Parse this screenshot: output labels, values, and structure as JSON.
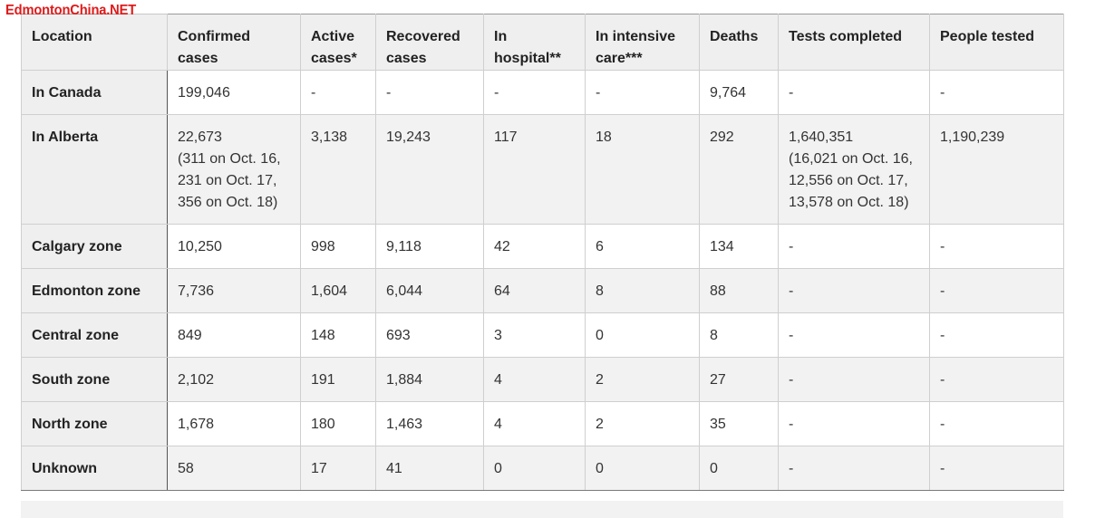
{
  "watermark": "EdmontonChina.NET",
  "table": {
    "headers": [
      "Location",
      "Confirmed cases",
      "Active cases*",
      "Recovered cases",
      "In hospital**",
      "In intensive care***",
      "Deaths",
      "Tests completed",
      "People tested"
    ],
    "rows": [
      {
        "location": "In Canada",
        "confirmed": "199,046",
        "active": "-",
        "recovered": "-",
        "hospital": "-",
        "icu": "-",
        "deaths": "9,764",
        "tests": "-",
        "people": "-"
      },
      {
        "location": "In Alberta",
        "confirmed": "22,673\n(311 on Oct. 16,\n231 on Oct. 17,\n356 on Oct. 18)",
        "active": "3,138",
        "recovered": "19,243",
        "hospital": "117",
        "icu": "18",
        "deaths": "292",
        "tests": "1,640,351\n(16,021 on Oct. 16,\n12,556 on Oct. 17,\n13,578 on Oct. 18)",
        "people": "1,190,239"
      },
      {
        "location": "Calgary zone",
        "confirmed": "10,250",
        "active": "998",
        "recovered": "9,118",
        "hospital": "42",
        "icu": "6",
        "deaths": "134",
        "tests": "-",
        "people": "-"
      },
      {
        "location": "Edmonton zone",
        "confirmed": "7,736",
        "active": "1,604",
        "recovered": "6,044",
        "hospital": "64",
        "icu": "8",
        "deaths": "88",
        "tests": "-",
        "people": "-"
      },
      {
        "location": "Central zone",
        "confirmed": "849",
        "active": "148",
        "recovered": "693",
        "hospital": "3",
        "icu": "0",
        "deaths": "8",
        "tests": "-",
        "people": "-"
      },
      {
        "location": "South zone",
        "confirmed": "2,102",
        "active": "191",
        "recovered": "1,884",
        "hospital": "4",
        "icu": "2",
        "deaths": "27",
        "tests": "-",
        "people": "-"
      },
      {
        "location": "North zone",
        "confirmed": "1,678",
        "active": "180",
        "recovered": "1,463",
        "hospital": "4",
        "icu": "2",
        "deaths": "35",
        "tests": "-",
        "people": "-"
      },
      {
        "location": "Unknown",
        "confirmed": "58",
        "active": "17",
        "recovered": "41",
        "hospital": "0",
        "icu": "0",
        "deaths": "0",
        "tests": "-",
        "people": "-"
      }
    ]
  },
  "colors": {
    "watermark": "#e01a1a",
    "header_bg": "#efefef",
    "row_shade": "#f2f2f2",
    "border": "#cfcfcf"
  }
}
